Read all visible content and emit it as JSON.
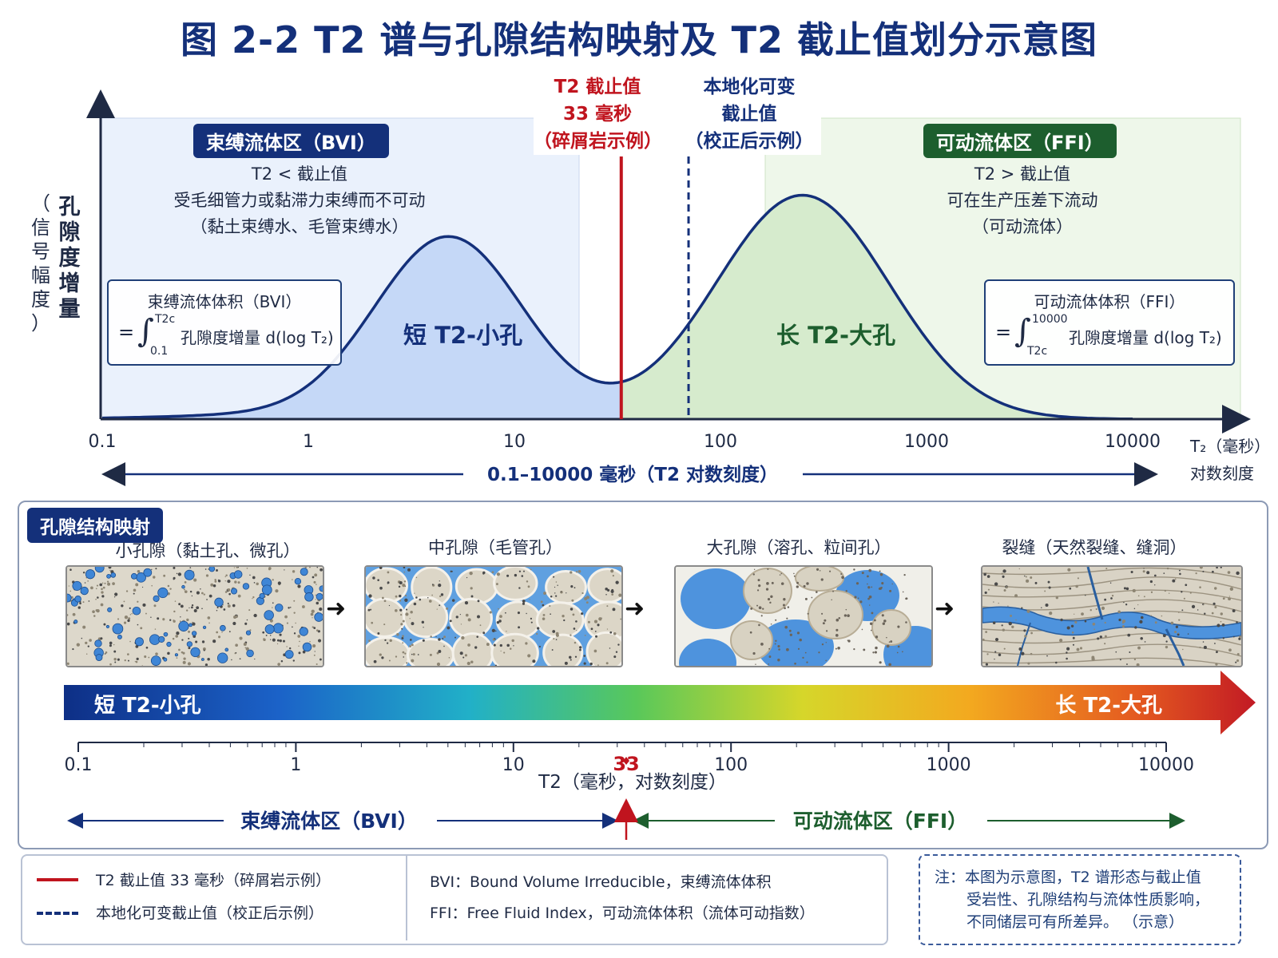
{
  "title": "图 2-2  T2 谱与孔隙结构映射及 T2 截止值划分示意图",
  "y_axis": {
    "label_main": [
      "孔",
      "隙",
      "度",
      "增",
      "量"
    ],
    "label_sub": [
      "（",
      "信",
      "号",
      "幅",
      "度",
      "）"
    ]
  },
  "x_axis": {
    "ticks": [
      "0.1",
      "1",
      "10",
      "100",
      "1000",
      "10000"
    ],
    "unit_line1": "T₂（毫秒）",
    "unit_line2": "对数刻度",
    "range_text": "0.1–10000 毫秒（T2 对数刻度）"
  },
  "cutoff_fixed": {
    "line1": "T2 截止值",
    "line2": "33 毫秒",
    "line3": "（碎屑岩示例）",
    "value_ms": 33,
    "color": "#c0141e"
  },
  "cutoff_local": {
    "line1": "本地化可变",
    "line2": "截止值",
    "line3": "（校正后示例）",
    "value_ms": 70,
    "color": "#14307a"
  },
  "bvi": {
    "tag": "束缚流体区（BVI）",
    "desc": [
      "T2 < 截止值",
      "受毛细管力或黏滞力束缚而不可动",
      "（黏土束缚水、毛管束缚水）"
    ],
    "peak_label": "短 T2-小孔",
    "formula_title": "束缚流体体积（BVI）",
    "formula_eq": "=",
    "formula_upper": "T2c",
    "formula_lower": "0.1",
    "formula_body": "孔隙度增量 d(log T₂)",
    "color": "#14307a",
    "fill": "#c5d8f7"
  },
  "ffi": {
    "tag": "可动流体区（FFI）",
    "desc": [
      "T2 > 截止值",
      "可在生产压差下流动",
      "（可动流体）"
    ],
    "peak_label": "长 T2-大孔",
    "formula_title": "可动流体体积（FFI）",
    "formula_eq": "=",
    "formula_upper": "10000",
    "formula_lower": "T2c",
    "formula_body": "孔隙度增量 d(log T₂)",
    "color": "#1d5e2e",
    "fill": "#d6ebcd"
  },
  "spectrum": {
    "peaks": [
      {
        "label": "短 T2-小孔",
        "t2_ms": 4.8,
        "amplitude": 0.69
      },
      {
        "label": "长 T2-大孔",
        "t2_ms": 250,
        "amplitude": 0.85
      }
    ]
  },
  "mapping": {
    "tag": "孔隙结构映射",
    "pores": [
      {
        "label": "小孔隙（黏土孔、微孔）",
        "icon": "micro-pore-thumbnail"
      },
      {
        "label": "中孔隙（毛管孔）",
        "icon": "capillary-pore-thumbnail"
      },
      {
        "label": "大孔隙（溶孔、粒间孔）",
        "icon": "macro-pore-thumbnail"
      },
      {
        "label": "裂缝（天然裂缝、缝洞）",
        "icon": "fracture-thumbnail"
      }
    ],
    "bar_left": "短 T2-小孔",
    "bar_right": "长 T2-大孔",
    "scale_ticks": [
      "0.1",
      "1",
      "10",
      "33",
      "100",
      "1000",
      "10000"
    ],
    "scale_title": "T2（毫秒，对数刻度）",
    "bvi_label": "束缚流体区（BVI）",
    "ffi_label": "可动流体区（FFI）"
  },
  "legend": {
    "fixed": "T2 截止值  33 毫秒（碎屑岩示例）",
    "local": "本地化可变截止值（校正后示例）",
    "bvi_def": "BVI：Bound Volume Irreducible，束缚流体体积",
    "ffi_def": "FFI：Free Fluid Index，可动流体体积（流体可动指数）"
  },
  "note": {
    "lines": [
      "注：本图为示意图，T2 谱形态与截止值",
      "受岩性、孔隙结构与流体性质影响，",
      "不同储层可有所差异。  （示意）"
    ]
  }
}
